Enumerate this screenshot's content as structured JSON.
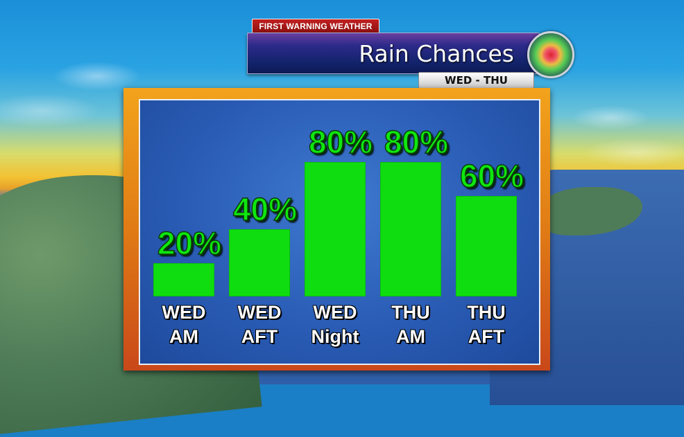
{
  "header": {
    "brand_prefix": "FIRST WARNING",
    "brand_suffix": "WEATHER",
    "title": "Rain Chances",
    "subtitle": "WED - THU"
  },
  "colors": {
    "bar": "#0fdd0f",
    "value_label": "#0fe70f",
    "panel_frame": "#e07b15",
    "panel_fill": "#2a5cb5"
  },
  "icons": {
    "radar": "radar-icon"
  },
  "chart_data": {
    "type": "bar",
    "title": "Rain Chances",
    "subtitle": "WED - THU",
    "categories": [
      "WED AM",
      "WED AFT",
      "WED Night",
      "THU AM",
      "THU AFT"
    ],
    "category_lines": [
      [
        "WED",
        "AM"
      ],
      [
        "WED",
        "AFT"
      ],
      [
        "WED",
        "Night"
      ],
      [
        "THU",
        "AM"
      ],
      [
        "THU",
        "AFT"
      ]
    ],
    "values": [
      20,
      40,
      80,
      80,
      60
    ],
    "value_labels": [
      "20%",
      "40%",
      "80%",
      "80%",
      "60%"
    ],
    "unit": "%",
    "ylim": [
      0,
      100
    ],
    "grid": false,
    "legend": "none"
  }
}
